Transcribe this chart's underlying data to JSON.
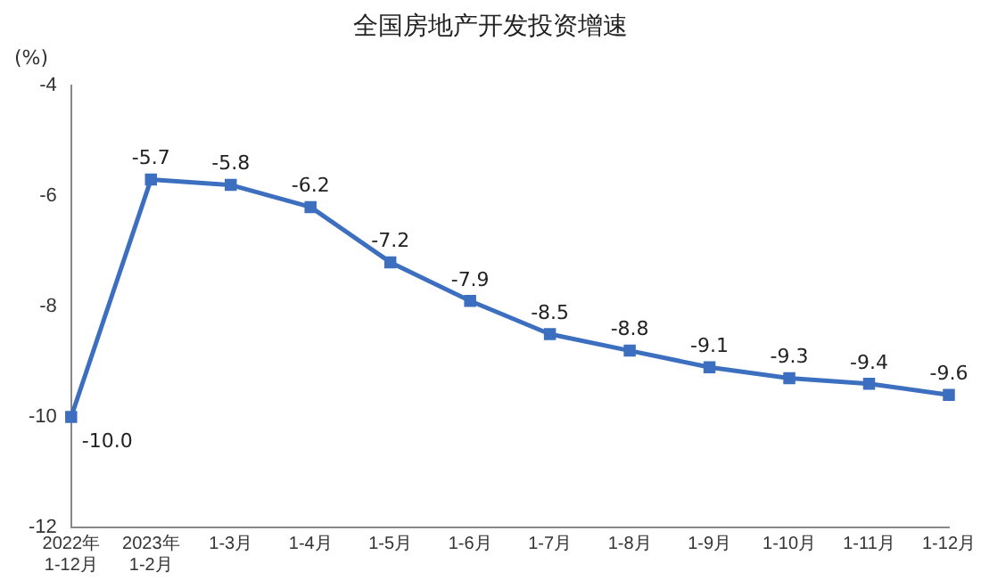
{
  "chart_data": {
    "type": "line",
    "title": "全国房地产开发投资增速",
    "ylabel": "(%)",
    "categories": [
      "2022年\n1-12月",
      "2023年\n1-2月",
      "1-3月",
      "1-4月",
      "1-5月",
      "1-6月",
      "1-7月",
      "1-8月",
      "1-9月",
      "1-10月",
      "1-11月",
      "1-12月"
    ],
    "series": [
      {
        "color": "#3d6fc0",
        "values": [
          -10.0,
          -5.7,
          -5.8,
          -6.2,
          -7.2,
          -7.9,
          -8.5,
          -8.8,
          -9.1,
          -9.3,
          -9.4,
          -9.6
        ],
        "value_labels": [
          "-10.0",
          "-5.7",
          "-5.8",
          "-6.2",
          "-7.2",
          "-7.9",
          "-8.5",
          "-8.8",
          "-9.1",
          "-9.3",
          "-9.4",
          "-9.6"
        ]
      }
    ],
    "ylim": [
      -12,
      -4
    ],
    "yticks": [
      -12,
      -10,
      -8,
      -6,
      -4
    ],
    "grid": false,
    "legend": false,
    "marker": "square",
    "line_style": "solid"
  }
}
